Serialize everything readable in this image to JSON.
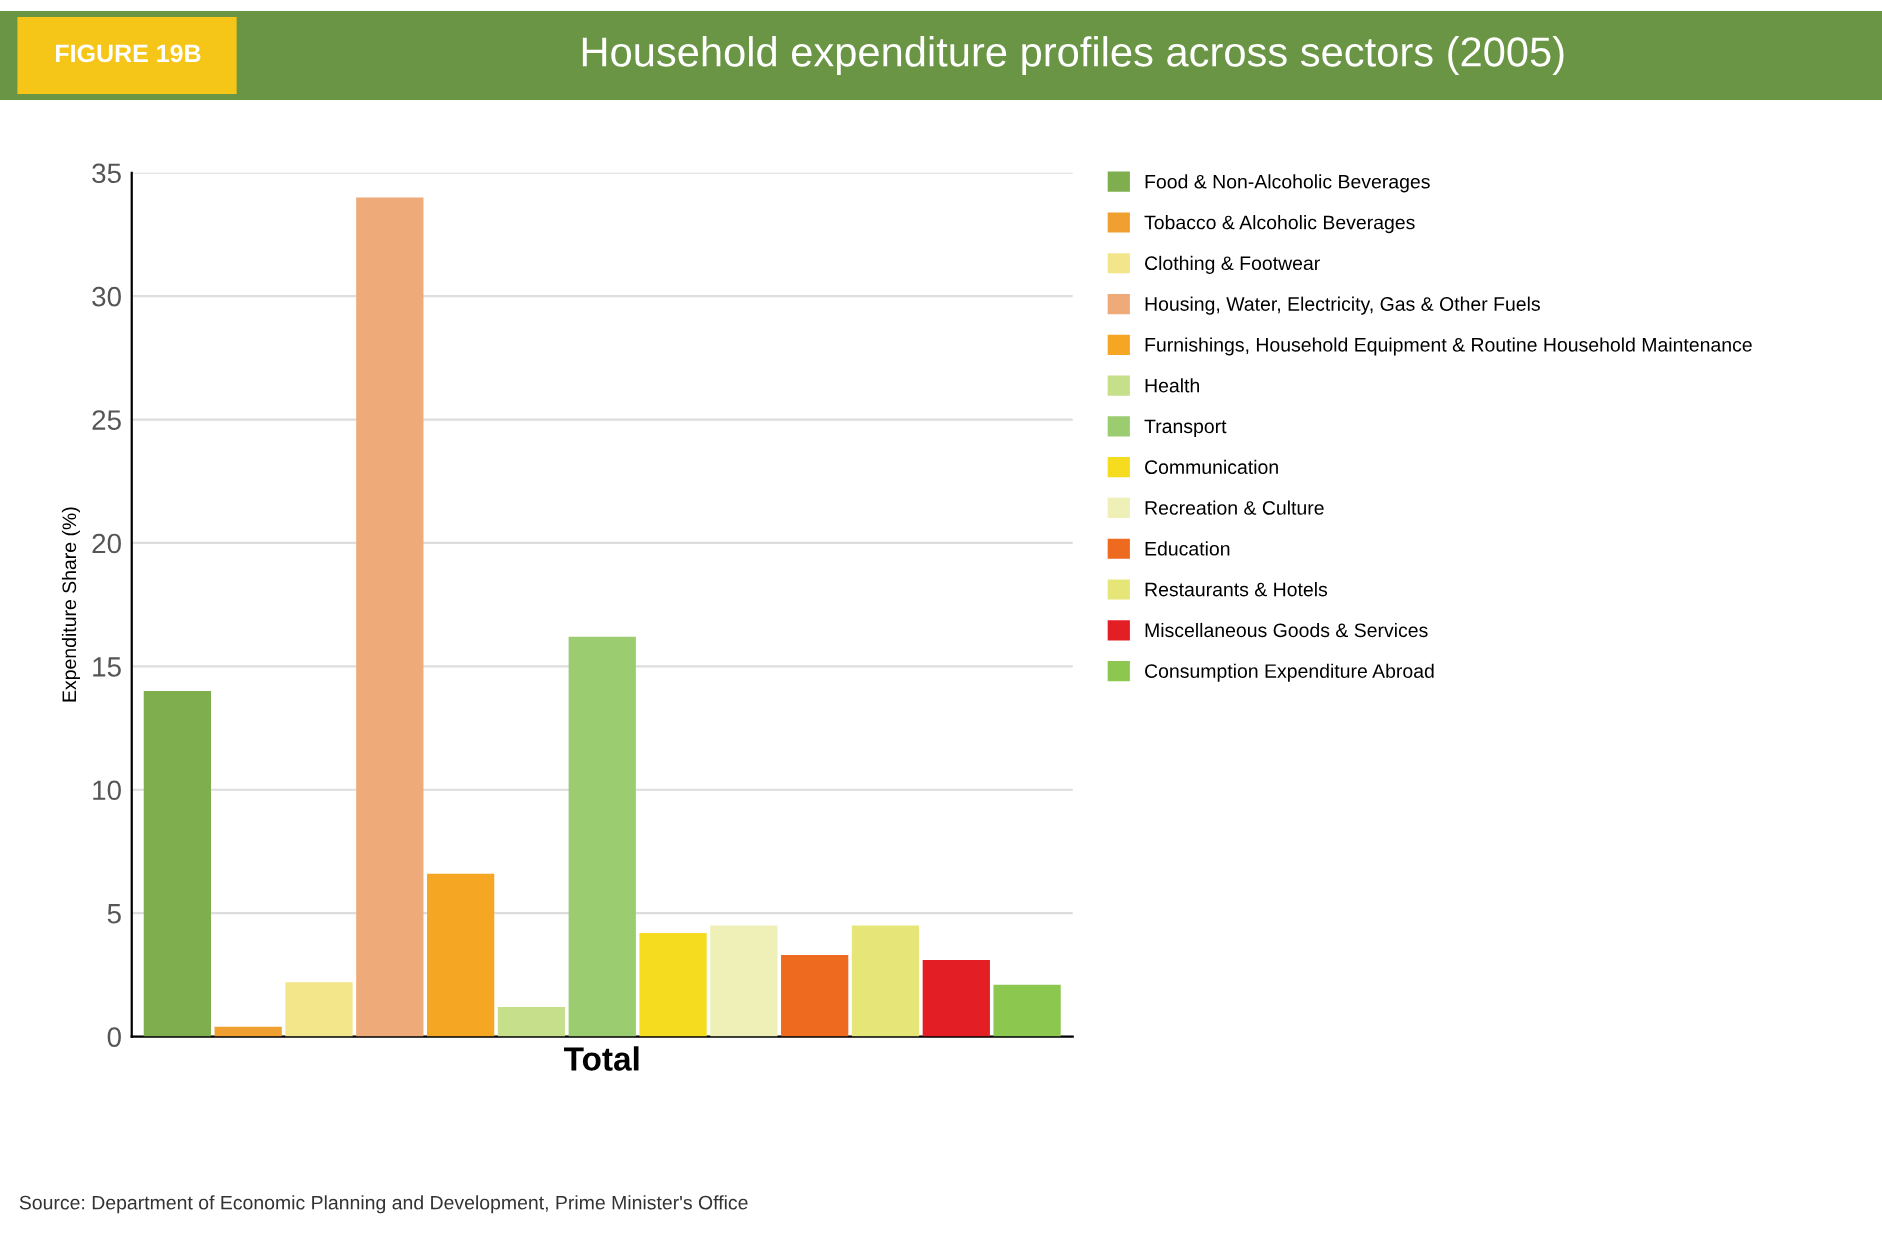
{
  "chart_data": {
    "type": "bar",
    "title": "Household expenditure profiles across sectors (2005)",
    "subtitle": "FIGURE 19B",
    "ylabel": "Expenditure Share (%)",
    "categories": [
      "Total"
    ],
    "series": [
      {
        "name": "Food & Non-Alcoholic Beverages",
        "color": "#7fae4e",
        "values": [
          14
        ]
      },
      {
        "name": "Tobacco & Alcoholic Beverages",
        "color": "#f0a030",
        "values": [
          0.4
        ]
      },
      {
        "name": "Clothing & Footwear",
        "color": "#f3e68a",
        "values": [
          2.2
        ]
      },
      {
        "name": "Housing, Water, Electricity, Gas & Other Fuels",
        "color": "#eeaa78",
        "values": [
          34
        ]
      },
      {
        "name": "Furnishings, Household Equipment & Routine Household Maintenance",
        "color": "#f5a623",
        "values": [
          6.6
        ]
      },
      {
        "name": "Health",
        "color": "#c5df8a",
        "values": [
          1.2
        ]
      },
      {
        "name": "Transport",
        "color": "#9ccc70",
        "values": [
          16.2
        ]
      },
      {
        "name": "Communication",
        "color": "#f5dc1e",
        "values": [
          4.2
        ]
      },
      {
        "name": "Recreation & Culture",
        "color": "#efefb8",
        "values": [
          4.5
        ]
      },
      {
        "name": "Education",
        "color": "#ee6a1e",
        "values": [
          3.3
        ]
      },
      {
        "name": "Restaurants & Hotels",
        "color": "#e6e678",
        "values": [
          4.5
        ]
      },
      {
        "name": "Miscellaneous Goods & Services",
        "color": "#e31e24",
        "values": [
          3.1
        ]
      },
      {
        "name": "Consumption Expenditure Abroad",
        "color": "#8cc850",
        "values": [
          2.1
        ]
      }
    ],
    "ylim": [
      0,
      35
    ],
    "yticks": [
      0,
      5,
      10,
      15,
      20,
      25,
      30,
      35
    ],
    "grid": "y",
    "legend": "right",
    "annotations": [
      "Source: Department of Economic Planning and Development, Prime Minister's Office"
    ]
  }
}
